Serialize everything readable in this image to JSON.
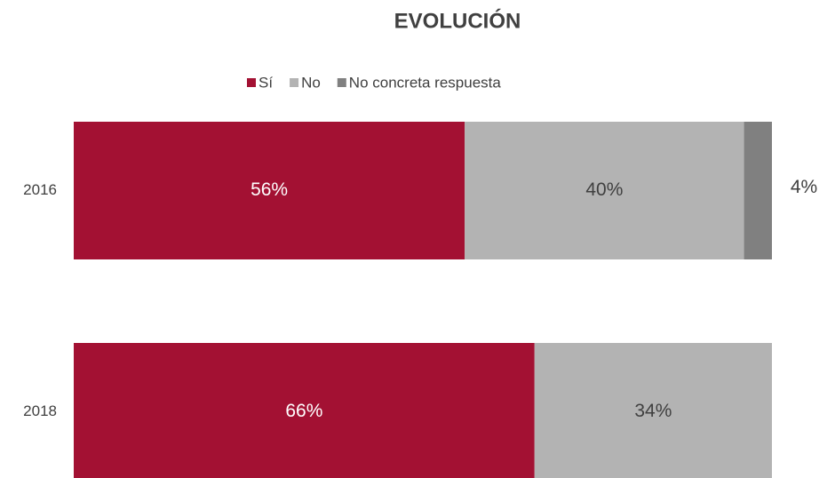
{
  "chart_data": {
    "type": "stacked-bar-horizontal",
    "title": "EVOLUCIÓN",
    "categories": [
      "2016",
      "2018"
    ],
    "series": [
      {
        "name": "Sí",
        "color": "#a31133",
        "values": [
          56,
          66
        ],
        "value_labels": [
          "56%",
          "66%"
        ]
      },
      {
        "name": "No",
        "color": "#b3b3b3",
        "values": [
          40,
          34
        ],
        "value_labels": [
          "40%",
          "34%"
        ]
      },
      {
        "name": "No concreta respuesta",
        "color": "#808080",
        "values": [
          4,
          null
        ],
        "value_labels": [
          "4%",
          null
        ]
      }
    ],
    "xlim": [
      0,
      100
    ],
    "legend": "top"
  }
}
